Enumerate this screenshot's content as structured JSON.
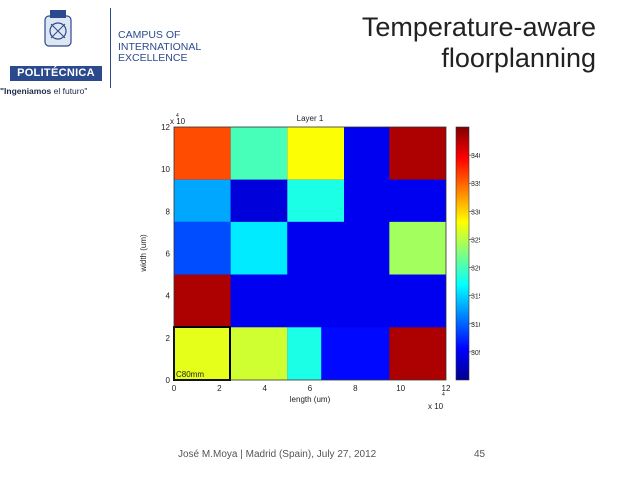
{
  "logo": {
    "brand": "POLITÉCNICA",
    "motto_bold": "\"Ingeniamos",
    "motto_rest": " el futuro\"",
    "campus_lines": [
      "CAMPUS OF",
      "INTERNATIONAL",
      "EXCELLENCE"
    ],
    "brand_color": "#2b4a8e"
  },
  "slide": {
    "title_lines": [
      "Temperature-aware",
      "floorplanning"
    ]
  },
  "footer": {
    "author": "José M.Moya |  Madrid (Spain), July 27, 2012",
    "page": "45"
  },
  "chart_data": {
    "type": "heatmap",
    "title": "Layer 1",
    "xlabel": "length (um)",
    "ylabel": "width (um)",
    "x_multiplier": "x 10",
    "x_exponent": "4",
    "y_multiplier": "x 10",
    "y_exponent": "4",
    "xlim": [
      0,
      12
    ],
    "ylim": [
      0,
      12
    ],
    "xticks": [
      0,
      2,
      4,
      6,
      8,
      10,
      12
    ],
    "yticks": [
      0,
      2,
      4,
      6,
      8,
      10,
      12
    ],
    "colorbar_ticks": [
      305,
      310,
      315,
      320,
      325,
      330,
      335,
      340
    ],
    "colorbar_range": [
      300,
      345
    ],
    "annotation": "C80mm",
    "blocks": [
      {
        "x0": 0,
        "x1": 2.5,
        "y0": 9.5,
        "y1": 12,
        "t": 336
      },
      {
        "x0": 2.5,
        "x1": 5,
        "y0": 9.5,
        "y1": 12,
        "t": 320
      },
      {
        "x0": 5,
        "x1": 7.5,
        "y0": 9.5,
        "y1": 12,
        "t": 328
      },
      {
        "x0": 7.5,
        "x1": 9.5,
        "y0": 9.5,
        "y1": 12,
        "t": 305
      },
      {
        "x0": 9.5,
        "x1": 12,
        "y0": 9.5,
        "y1": 12,
        "t": 343
      },
      {
        "x0": 0,
        "x1": 2.5,
        "y0": 7.5,
        "y1": 9.5,
        "t": 313
      },
      {
        "x0": 2.5,
        "x1": 5,
        "y0": 7.5,
        "y1": 9.5,
        "t": 304
      },
      {
        "x0": 5,
        "x1": 7.5,
        "y0": 7.5,
        "y1": 9.5,
        "t": 318
      },
      {
        "x0": 7.5,
        "x1": 12,
        "y0": 7.5,
        "y1": 9.5,
        "t": 305
      },
      {
        "x0": 0,
        "x1": 2.5,
        "y0": 5,
        "y1": 7.5,
        "t": 309
      },
      {
        "x0": 2.5,
        "x1": 5,
        "y0": 5,
        "y1": 7.5,
        "t": 316
      },
      {
        "x0": 5,
        "x1": 9.5,
        "y0": 5,
        "y1": 7.5,
        "t": 305
      },
      {
        "x0": 9.5,
        "x1": 12,
        "y0": 5,
        "y1": 7.5,
        "t": 324
      },
      {
        "x0": 0,
        "x1": 2.5,
        "y0": 2.5,
        "y1": 5,
        "t": 343
      },
      {
        "x0": 2.5,
        "x1": 12,
        "y0": 2.5,
        "y1": 5,
        "t": 305
      },
      {
        "x0": 0,
        "x1": 2.5,
        "y0": 0,
        "y1": 2.5,
        "t": 327
      },
      {
        "x0": 2.5,
        "x1": 5,
        "y0": 0,
        "y1": 2.5,
        "t": 326
      },
      {
        "x0": 5,
        "x1": 6.5,
        "y0": 0,
        "y1": 2.5,
        "t": 318
      },
      {
        "x0": 6.5,
        "x1": 9.5,
        "y0": 0,
        "y1": 2.5,
        "t": 306
      },
      {
        "x0": 9.5,
        "x1": 12,
        "y0": 0,
        "y1": 2.5,
        "t": 343
      }
    ]
  }
}
